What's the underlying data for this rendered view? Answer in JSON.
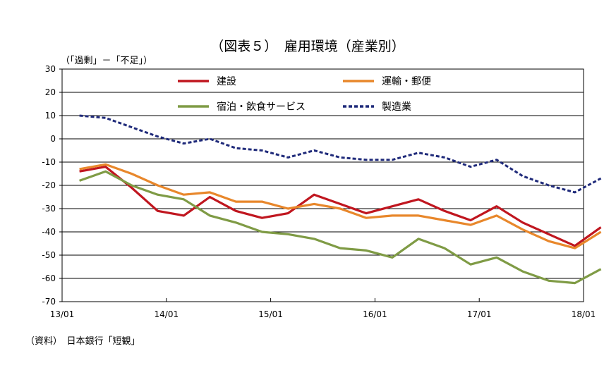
{
  "chart_data": {
    "type": "line",
    "title": "（図表５）　雇用環境（産業別）",
    "ylabel": "（「過剰」－「不足」）",
    "source": "（資料）　日本銀行「短観」",
    "ylim": [
      -70,
      30
    ],
    "yticks": [
      "30",
      "20",
      "10",
      "0",
      "-10",
      "-20",
      "-30",
      "-40",
      "-50",
      "-60",
      "-70"
    ],
    "x": [
      "13/03",
      "13/06",
      "13/09",
      "13/12",
      "14/03",
      "14/06",
      "14/09",
      "14/12",
      "15/03",
      "15/06",
      "15/09",
      "15/12",
      "16/03",
      "16/06",
      "16/09",
      "16/12",
      "17/03",
      "17/06",
      "17/09",
      "17/12",
      "18/03"
    ],
    "xticks": [
      "13/01",
      "14/01",
      "15/01",
      "16/01",
      "17/01",
      "18/01"
    ],
    "grid": "horizontal",
    "legend_position": "top",
    "series": [
      {
        "name": "建設",
        "color": "#c0161f",
        "style": "solid",
        "values": [
          -14,
          -12,
          -21,
          -31,
          -33,
          -25,
          -31,
          -34,
          -32,
          -24,
          -28,
          -32,
          -29,
          -26,
          -31,
          -35,
          -29,
          -36,
          -41,
          -46,
          -38
        ]
      },
      {
        "name": "運輸・郵便",
        "color": "#e8872b",
        "style": "solid",
        "values": [
          -13,
          -11,
          -15,
          -20,
          -24,
          -23,
          -27,
          -27,
          -30,
          -28,
          -30,
          -34,
          -33,
          -33,
          -35,
          -37,
          -33,
          -39,
          -44,
          -47,
          -40
        ]
      },
      {
        "name": "宿泊・飲食サービス",
        "color": "#7f9b45",
        "style": "solid",
        "values": [
          -18,
          -14,
          -20,
          -24,
          -26,
          -33,
          -36,
          -40,
          -41,
          -43,
          -47,
          -48,
          -51,
          -43,
          -47,
          -54,
          -51,
          -57,
          -61,
          -62,
          -56
        ]
      },
      {
        "name": "製造業",
        "color": "#1f2a7a",
        "style": "dashed",
        "values": [
          10,
          9,
          5,
          1,
          -2,
          0,
          -4,
          -5,
          -8,
          -5,
          -8,
          -9,
          -9,
          -6,
          -8,
          -12,
          -9,
          -16,
          -20,
          -23,
          -17
        ]
      }
    ]
  }
}
